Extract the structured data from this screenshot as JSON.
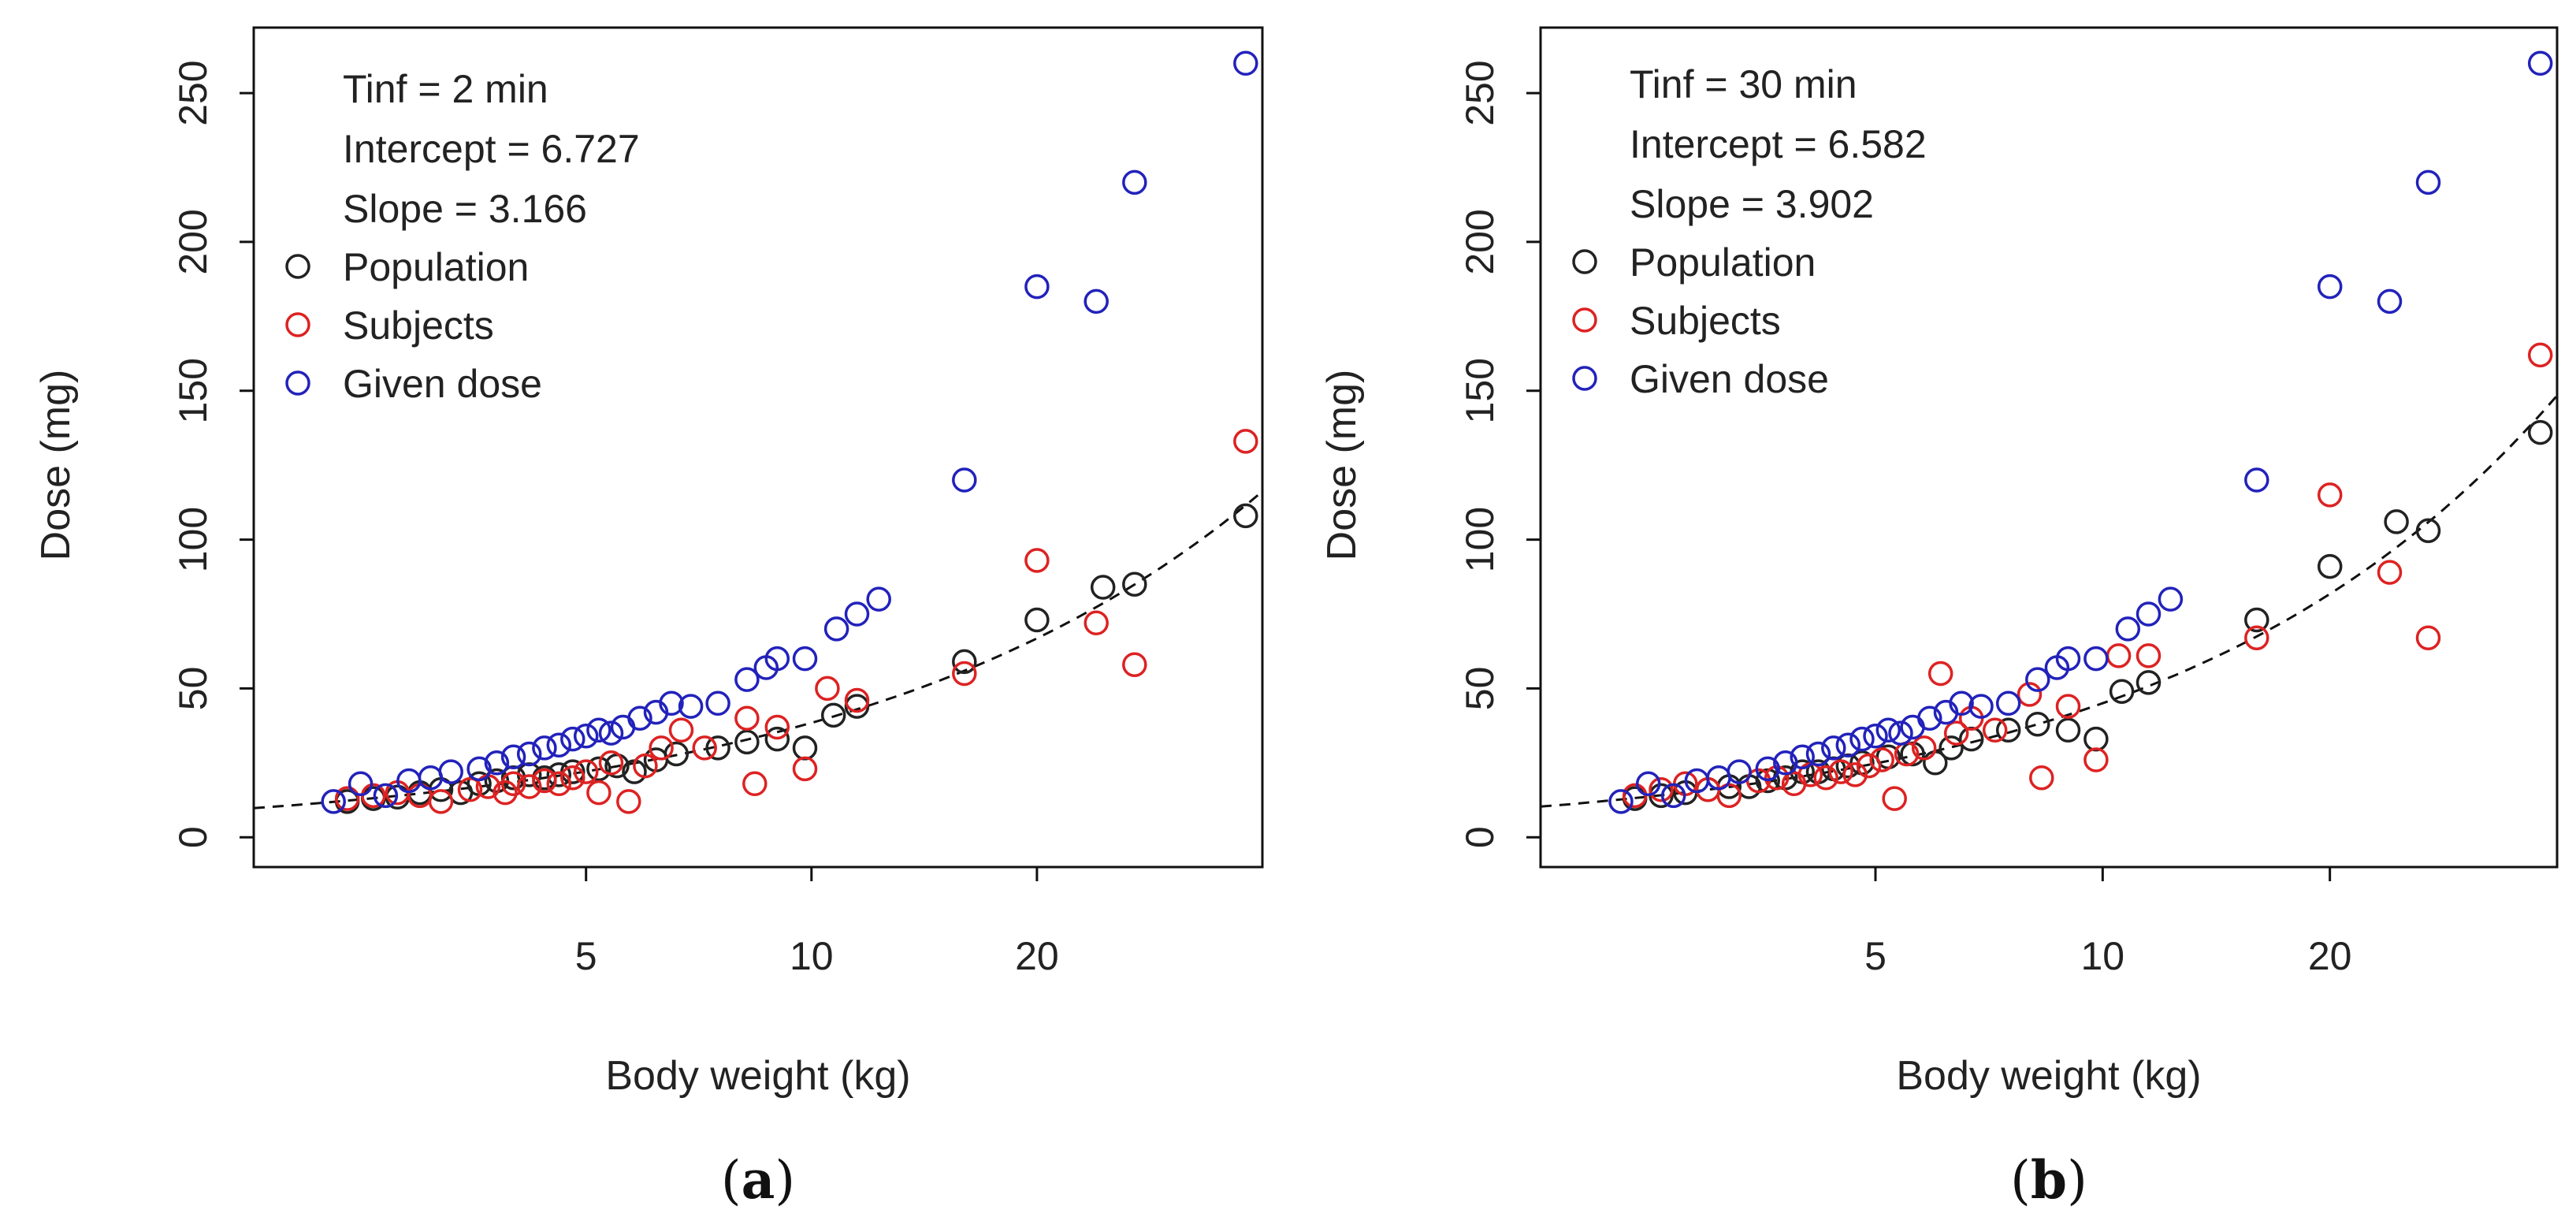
{
  "chart_data": [
    {
      "type": "scatter",
      "panel_label": "a",
      "xlabel": "Body weight (kg)",
      "ylabel": "Dose (mg)",
      "x_scale": "log",
      "xlim": [
        1.8,
        40
      ],
      "ylim": [
        -10,
        272
      ],
      "xticks": [
        5,
        10,
        20
      ],
      "yticks": [
        0,
        50,
        100,
        150,
        200,
        250
      ],
      "annotations": [
        "Tinf = 2 min",
        "Intercept = 6.727",
        "Slope = 3.166"
      ],
      "legend": [
        {
          "label": "Population",
          "color": "#222222"
        },
        {
          "label": "Subjects",
          "color": "#dd2222"
        },
        {
          "label": "Given dose",
          "color": "#2222bb"
        }
      ],
      "fit_line": {
        "intercept": 6.727,
        "slope": 3.166,
        "x_range": [
          1.8,
          40
        ]
      },
      "series": [
        {
          "name": "Population",
          "color": "#222222",
          "points": [
            [
              2.4,
              12
            ],
            [
              2.6,
              13
            ],
            [
              2.8,
              13.5
            ],
            [
              3.0,
              15
            ],
            [
              3.2,
              16
            ],
            [
              3.4,
              15
            ],
            [
              3.6,
              18
            ],
            [
              3.8,
              19
            ],
            [
              4.0,
              20
            ],
            [
              4.2,
              21
            ],
            [
              4.4,
              20
            ],
            [
              4.6,
              21
            ],
            [
              4.8,
              22
            ],
            [
              5.2,
              23
            ],
            [
              5.5,
              24
            ],
            [
              5.8,
              22
            ],
            [
              6.2,
              26
            ],
            [
              6.6,
              28
            ],
            [
              7.5,
              30
            ],
            [
              8.2,
              32
            ],
            [
              9.0,
              33
            ],
            [
              9.8,
              30
            ],
            [
              10.7,
              41
            ],
            [
              11.5,
              44
            ],
            [
              16,
              59
            ],
            [
              20,
              73
            ],
            [
              24.5,
              84
            ],
            [
              27,
              85
            ],
            [
              38,
              108
            ]
          ]
        },
        {
          "name": "Subjects",
          "color": "#dd2222",
          "points": [
            [
              2.4,
              13
            ],
            [
              2.6,
              14
            ],
            [
              2.8,
              15
            ],
            [
              3.0,
              14
            ],
            [
              3.2,
              12
            ],
            [
              3.5,
              16
            ],
            [
              3.7,
              17
            ],
            [
              3.9,
              15
            ],
            [
              4.0,
              18
            ],
            [
              4.2,
              17
            ],
            [
              4.4,
              19
            ],
            [
              4.6,
              18
            ],
            [
              4.8,
              20
            ],
            [
              5.0,
              22
            ],
            [
              5.2,
              15
            ],
            [
              5.4,
              25
            ],
            [
              5.7,
              12
            ],
            [
              6.0,
              24
            ],
            [
              6.3,
              30
            ],
            [
              6.7,
              36
            ],
            [
              7.2,
              30
            ],
            [
              8.2,
              40
            ],
            [
              8.4,
              18
            ],
            [
              9.0,
              37
            ],
            [
              9.8,
              23
            ],
            [
              10.5,
              50
            ],
            [
              11.5,
              46
            ],
            [
              16,
              55
            ],
            [
              20,
              93
            ],
            [
              24,
              72
            ],
            [
              27,
              58
            ],
            [
              38,
              133
            ]
          ]
        },
        {
          "name": "Given dose",
          "color": "#2222bb",
          "points": [
            [
              2.3,
              12
            ],
            [
              2.5,
              18
            ],
            [
              2.7,
              14
            ],
            [
              2.9,
              19
            ],
            [
              3.1,
              20
            ],
            [
              3.3,
              22
            ],
            [
              3.6,
              23
            ],
            [
              3.8,
              25
            ],
            [
              4.0,
              27
            ],
            [
              4.2,
              28
            ],
            [
              4.4,
              30
            ],
            [
              4.6,
              31
            ],
            [
              4.8,
              33
            ],
            [
              5.0,
              34
            ],
            [
              5.2,
              36
            ],
            [
              5.4,
              35
            ],
            [
              5.6,
              37
            ],
            [
              5.9,
              40
            ],
            [
              6.2,
              42
            ],
            [
              6.5,
              45
            ],
            [
              6.9,
              44
            ],
            [
              7.5,
              45
            ],
            [
              8.2,
              53
            ],
            [
              8.7,
              57
            ],
            [
              9.0,
              60
            ],
            [
              9.8,
              60
            ],
            [
              10.8,
              70
            ],
            [
              11.5,
              75
            ],
            [
              12.3,
              80
            ],
            [
              16,
              120
            ],
            [
              20,
              185
            ],
            [
              24,
              180
            ],
            [
              27,
              220
            ],
            [
              38,
              260
            ]
          ]
        }
      ]
    },
    {
      "type": "scatter",
      "panel_label": "b",
      "xlabel": "Body weight (kg)",
      "ylabel": "Dose (mg)",
      "x_scale": "log",
      "xlim": [
        1.8,
        40
      ],
      "ylim": [
        -10,
        272
      ],
      "xticks": [
        5,
        10,
        20
      ],
      "yticks": [
        0,
        50,
        100,
        150,
        200,
        250
      ],
      "annotations": [
        "Tinf = 30 min",
        "Intercept = 6.582",
        "Slope = 3.902"
      ],
      "legend": [
        {
          "label": "Population",
          "color": "#222222"
        },
        {
          "label": "Subjects",
          "color": "#dd2222"
        },
        {
          "label": "Given dose",
          "color": "#2222bb"
        }
      ],
      "fit_line": {
        "intercept": 6.582,
        "slope": 3.902,
        "x_range": [
          1.8,
          40
        ]
      },
      "series": [
        {
          "name": "Population",
          "color": "#222222",
          "points": [
            [
              2.4,
              13
            ],
            [
              2.6,
              14
            ],
            [
              2.8,
              15
            ],
            [
              3.0,
              16
            ],
            [
              3.2,
              17
            ],
            [
              3.4,
              17
            ],
            [
              3.6,
              19
            ],
            [
              3.8,
              20
            ],
            [
              4.0,
              22
            ],
            [
              4.2,
              22
            ],
            [
              4.4,
              23
            ],
            [
              4.6,
              24
            ],
            [
              4.8,
              25
            ],
            [
              5.2,
              27
            ],
            [
              5.6,
              28
            ],
            [
              6.0,
              25
            ],
            [
              6.3,
              30
            ],
            [
              6.7,
              33
            ],
            [
              7.5,
              36
            ],
            [
              8.2,
              38
            ],
            [
              9.0,
              36
            ],
            [
              9.8,
              33
            ],
            [
              10.6,
              49
            ],
            [
              11.5,
              52
            ],
            [
              16,
              73
            ],
            [
              20,
              91
            ],
            [
              24.5,
              106
            ],
            [
              27,
              103
            ],
            [
              38,
              136
            ]
          ]
        },
        {
          "name": "Subjects",
          "color": "#dd2222",
          "points": [
            [
              2.4,
              14
            ],
            [
              2.6,
              16
            ],
            [
              2.8,
              18
            ],
            [
              3.0,
              16
            ],
            [
              3.2,
              14
            ],
            [
              3.5,
              19
            ],
            [
              3.7,
              20
            ],
            [
              3.9,
              18
            ],
            [
              4.1,
              21
            ],
            [
              4.3,
              20
            ],
            [
              4.5,
              22
            ],
            [
              4.7,
              21
            ],
            [
              4.9,
              24
            ],
            [
              5.1,
              26
            ],
            [
              5.3,
              13
            ],
            [
              5.5,
              28
            ],
            [
              5.8,
              30
            ],
            [
              6.1,
              55
            ],
            [
              6.4,
              35
            ],
            [
              6.7,
              40
            ],
            [
              7.2,
              36
            ],
            [
              8.0,
              48
            ],
            [
              8.3,
              20
            ],
            [
              9.0,
              44
            ],
            [
              9.8,
              26
            ],
            [
              10.5,
              61
            ],
            [
              11.5,
              61
            ],
            [
              16,
              67
            ],
            [
              20,
              115
            ],
            [
              24,
              89
            ],
            [
              27,
              67
            ],
            [
              38,
              162
            ]
          ]
        },
        {
          "name": "Given dose",
          "color": "#2222bb",
          "points": [
            [
              2.3,
              12
            ],
            [
              2.5,
              18
            ],
            [
              2.7,
              14
            ],
            [
              2.9,
              19
            ],
            [
              3.1,
              20
            ],
            [
              3.3,
              22
            ],
            [
              3.6,
              23
            ],
            [
              3.8,
              25
            ],
            [
              4.0,
              27
            ],
            [
              4.2,
              28
            ],
            [
              4.4,
              30
            ],
            [
              4.6,
              31
            ],
            [
              4.8,
              33
            ],
            [
              5.0,
              34
            ],
            [
              5.2,
              36
            ],
            [
              5.4,
              35
            ],
            [
              5.6,
              37
            ],
            [
              5.9,
              40
            ],
            [
              6.2,
              42
            ],
            [
              6.5,
              45
            ],
            [
              6.9,
              44
            ],
            [
              7.5,
              45
            ],
            [
              8.2,
              53
            ],
            [
              8.7,
              57
            ],
            [
              9.0,
              60
            ],
            [
              9.8,
              60
            ],
            [
              10.8,
              70
            ],
            [
              11.5,
              75
            ],
            [
              12.3,
              80
            ],
            [
              16,
              120
            ],
            [
              20,
              185
            ],
            [
              24,
              180
            ],
            [
              27,
              220
            ],
            [
              38,
              260
            ]
          ]
        }
      ]
    }
  ]
}
